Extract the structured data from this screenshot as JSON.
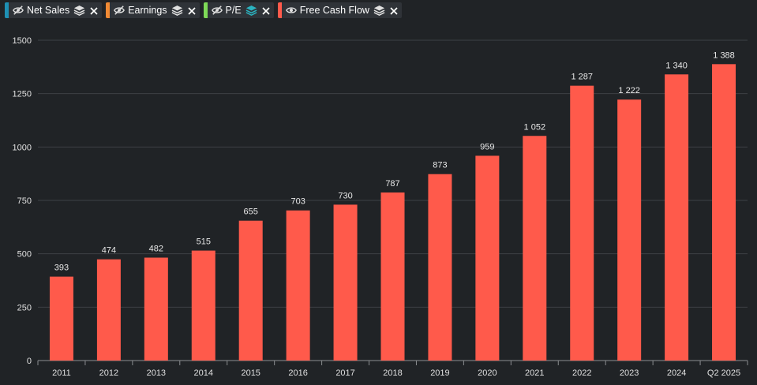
{
  "legend": [
    {
      "name": "Net Sales",
      "color": "#1e90b4",
      "visible": false,
      "icon": "eye-slash-icon",
      "stack_color": "#e0e0e0"
    },
    {
      "name": "Earnings",
      "color": "#f08a34",
      "visible": false,
      "icon": "eye-slash-icon",
      "stack_color": "#e0e0e0"
    },
    {
      "name": "P/E",
      "color": "#7ed957",
      "visible": false,
      "icon": "eye-slash-icon",
      "stack_color": "#2bb3c0"
    },
    {
      "name": "Free Cash Flow",
      "color": "#ff5a4b",
      "visible": true,
      "icon": "eye-icon",
      "stack_color": "#e0e0e0"
    }
  ],
  "chart_data": {
    "type": "bar",
    "categories": [
      "2011",
      "2012",
      "2013",
      "2014",
      "2015",
      "2016",
      "2017",
      "2018",
      "2019",
      "2020",
      "2021",
      "2022",
      "2023",
      "2024",
      "Q2 2025"
    ],
    "series": [
      {
        "name": "Free Cash Flow",
        "color": "#ff5a4b",
        "values": [
          393,
          474,
          482,
          515,
          655,
          703,
          730,
          787,
          873,
          959,
          1052,
          1287,
          1222,
          1340,
          1388
        ],
        "labels": [
          "393",
          "474",
          "482",
          "515",
          "655",
          "703",
          "730",
          "787",
          "873",
          "959",
          "1 052",
          "1 287",
          "1 222",
          "1 340",
          "1 388"
        ]
      }
    ],
    "ylim": [
      0,
      1500
    ],
    "yticks": [
      "0",
      "250",
      "500",
      "750",
      "1000",
      "1250",
      "1500"
    ],
    "grid": true
  }
}
